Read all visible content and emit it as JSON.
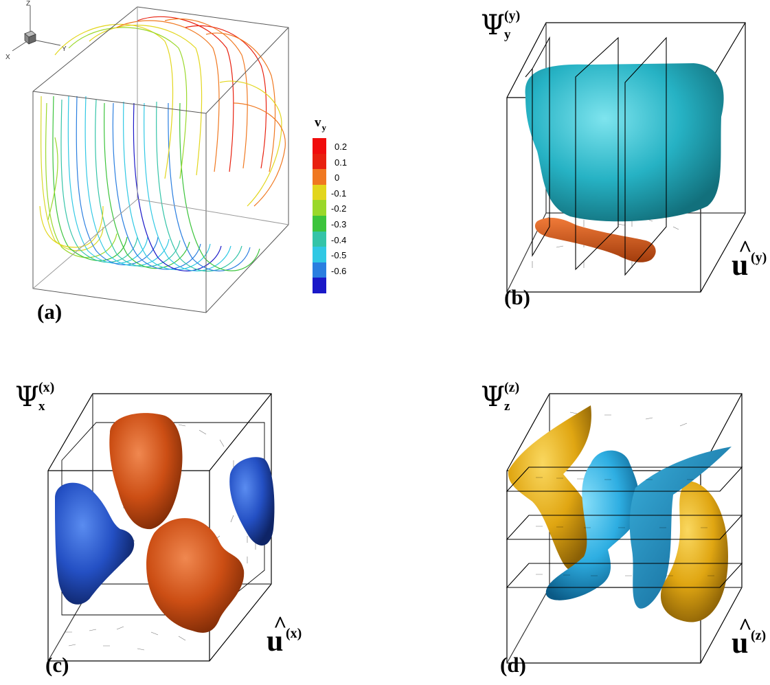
{
  "panels": {
    "a": {
      "label": "(a)",
      "axes": {
        "z": "Z",
        "y": "Y",
        "x": "X"
      },
      "legend": {
        "title_main": "v",
        "title_sub": "y",
        "entries": [
          {
            "value": "0.2",
            "color": "#e8200e"
          },
          {
            "value": "0.1",
            "color": "#f07820"
          },
          {
            "value": "0",
            "color": "#e2d61c"
          },
          {
            "value": "-0.1",
            "color": "#9ad82a"
          },
          {
            "value": "-0.2",
            "color": "#3cc43c"
          },
          {
            "value": "-0.3",
            "color": "#34c4a8"
          },
          {
            "value": "-0.4",
            "color": "#30c8e4"
          },
          {
            "value": "-0.5",
            "color": "#2a7ee0"
          },
          {
            "value": "-0.6",
            "color": "#1a18c8"
          }
        ],
        "top_color": "#f00c0c"
      }
    },
    "b": {
      "label": "(b)",
      "psi_sup": "(y)",
      "psi_sub": "y",
      "u_sup": "(y)"
    },
    "c": {
      "label": "(c)",
      "psi_sup": "(x)",
      "psi_sub": "x",
      "u_sup": "(x)"
    },
    "d": {
      "label": "(d)",
      "psi_sup": "(z)",
      "psi_sub": "z",
      "u_sup": "(z)"
    }
  },
  "symbols": {
    "psi": "Ψ",
    "u": "u",
    "hat": "^"
  },
  "colors": {
    "teal": "#2ab4c4",
    "orange_red": "#d0561a",
    "blue": "#2456c8",
    "gold": "#e2aa10",
    "light_blue": "#34b4e4"
  }
}
